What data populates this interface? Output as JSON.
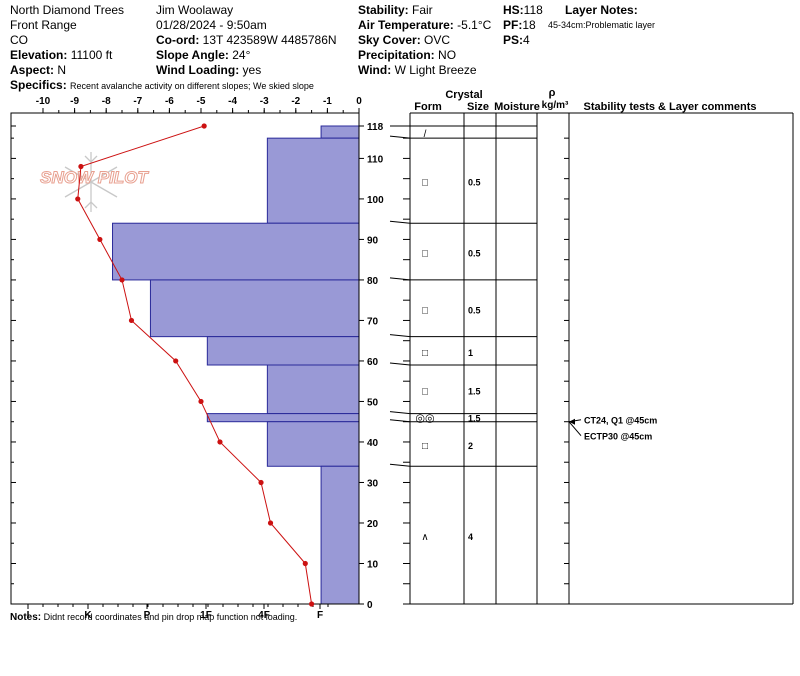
{
  "header": {
    "col1": {
      "location": "North Diamond Trees",
      "range": "Front Range",
      "state": "CO",
      "elevation_label": "Elevation:",
      "elevation_value": "11100 ft",
      "aspect_label": "Aspect:",
      "aspect_value": "N",
      "specifics_label": "Specifics:",
      "specifics_value": "Recent avalanche activity on different slopes; We skied slope"
    },
    "col2": {
      "observer": "Jim Woolaway",
      "datetime": "01/28/2024 - 9:50am",
      "coord_label": "Co-ord:",
      "coord_value": "13T 423589W 4485786N",
      "slope_label": "Slope Angle:",
      "slope_value": "24°",
      "wind_loading_label": "Wind Loading:",
      "wind_loading_value": "yes"
    },
    "col3": {
      "stability_label": "Stability:",
      "stability_value": "Fair",
      "air_temp_label": "Air Temperature:",
      "air_temp_value": "-5.1°C",
      "sky_label": "Sky Cover:",
      "sky_value": "OVC",
      "precip_label": "Precipitation:",
      "precip_value": "NO",
      "wind_label": "Wind:",
      "wind_value": "W Light Breeze"
    },
    "col4": {
      "hs_label": "HS:",
      "hs_value": "118",
      "pf_label": "PF:",
      "pf_value": "18",
      "ps_label": "PS:",
      "ps_value": "4"
    },
    "layer_notes": {
      "title": "Layer Notes:",
      "note": "45-34cm:Problematic layer"
    }
  },
  "notes": {
    "label": "Notes:",
    "text": "Didnt record coordinates and pin drop map function not loading."
  },
  "watermark": "SNOW PILOT",
  "table_headers": {
    "crystal": "Crystal",
    "form": "Form",
    "size": "Size",
    "moisture": "Moisture",
    "rho": "ρ",
    "density": "kg/m³",
    "comments": "Stability tests & Layer comments"
  },
  "colors": {
    "hardness_fill": "#9999d6",
    "hardness_stroke": "#2a2a9a",
    "temp_line": "#cc1111",
    "temp_point": "#cc1111"
  },
  "chart_data": {
    "type": "snow_profile",
    "temperature_axis": {
      "ticks": [
        "-10",
        "-9",
        "-8",
        "-7",
        "-6",
        "-5",
        "-4",
        "-3",
        "-2",
        "-1",
        "0"
      ],
      "range": [
        -10,
        0
      ]
    },
    "hardness_axis": {
      "ticks": [
        "I",
        "K",
        "P",
        "1F",
        "4F",
        "F"
      ]
    },
    "depth_axis": {
      "ticks": [
        "0",
        "10",
        "20",
        "30",
        "40",
        "50",
        "60",
        "70",
        "80",
        "90",
        "100",
        "110",
        "118"
      ],
      "range": [
        0,
        118
      ]
    },
    "temperature_profile": [
      {
        "depth": 118,
        "temp": -4.9
      },
      {
        "depth": 108,
        "temp": -8.8
      },
      {
        "depth": 100,
        "temp": -8.9
      },
      {
        "depth": 90,
        "temp": -8.2
      },
      {
        "depth": 80,
        "temp": -7.5
      },
      {
        "depth": 70,
        "temp": -7.2
      },
      {
        "depth": 60,
        "temp": -5.8
      },
      {
        "depth": 50,
        "temp": -5.0
      },
      {
        "depth": 40,
        "temp": -4.4
      },
      {
        "depth": 30,
        "temp": -3.1
      },
      {
        "depth": 20,
        "temp": -2.8
      },
      {
        "depth": 10,
        "temp": -1.7
      },
      {
        "depth": 0,
        "temp": -1.5
      }
    ],
    "hardness_layers": [
      {
        "top": 118,
        "bottom": 115,
        "hardness_temp_equiv": -1.2
      },
      {
        "top": 115,
        "bottom": 94,
        "hardness_temp_equiv": -2.9
      },
      {
        "top": 94,
        "bottom": 80,
        "hardness_temp_equiv": -7.8
      },
      {
        "top": 80,
        "bottom": 66,
        "hardness_temp_equiv": -6.6
      },
      {
        "top": 66,
        "bottom": 59,
        "hardness_temp_equiv": -4.8
      },
      {
        "top": 59,
        "bottom": 47,
        "hardness_temp_equiv": -2.9
      },
      {
        "top": 47,
        "bottom": 45,
        "hardness_temp_equiv": -4.8
      },
      {
        "top": 45,
        "bottom": 34,
        "hardness_temp_equiv": -2.9
      },
      {
        "top": 34,
        "bottom": 0,
        "hardness_temp_equiv": -1.2
      }
    ],
    "layers": [
      {
        "top": 118,
        "bottom": 115,
        "form": "/",
        "size": ""
      },
      {
        "top": 115,
        "bottom": 94,
        "form": "□",
        "size": "0.5"
      },
      {
        "top": 94,
        "bottom": 80,
        "form": "□",
        "size": "0.5"
      },
      {
        "top": 80,
        "bottom": 66,
        "form": "□",
        "size": "0.5"
      },
      {
        "top": 66,
        "bottom": 59,
        "form": "□",
        "size": "1"
      },
      {
        "top": 59,
        "bottom": 47,
        "form": "□",
        "size": "1.5"
      },
      {
        "top": 47,
        "bottom": 45,
        "form": "◎◎",
        "size": "1.5"
      },
      {
        "top": 45,
        "bottom": 34,
        "form": "□",
        "size": "2"
      },
      {
        "top": 34,
        "bottom": 0,
        "form": "∧",
        "size": "4"
      }
    ],
    "stability_tests": [
      {
        "text": "CT24, Q1 @45cm",
        "depth": 45
      },
      {
        "text": "ECTP30 @45cm",
        "depth": 45
      }
    ]
  }
}
